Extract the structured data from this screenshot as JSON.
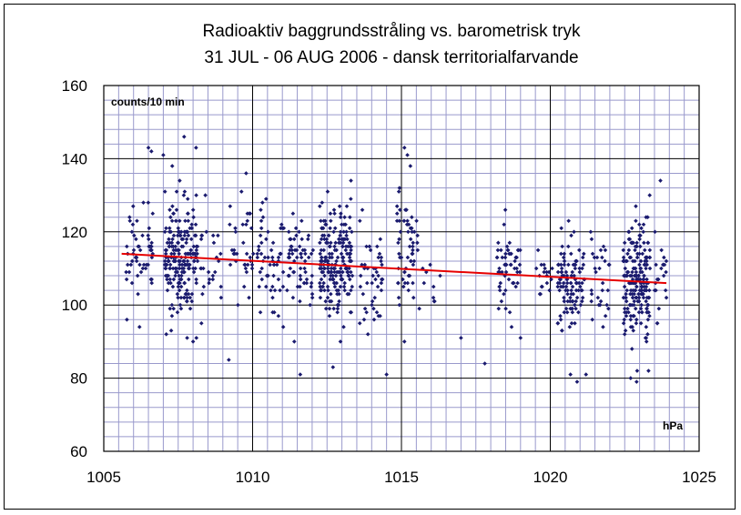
{
  "chart_data": {
    "type": "scatter",
    "title": "Radioaktiv baggrundsstråling vs. barometrisk tryk",
    "subtitle": "31 JUL - 06 AUG 2006 - dansk territorialfarvande",
    "ylabel": "counts/10 min",
    "xlabel": "hPa",
    "xlim": [
      1005,
      1025
    ],
    "ylim": [
      60,
      160
    ],
    "xticks": [
      1005,
      1010,
      1015,
      1020,
      1025
    ],
    "yticks": [
      60,
      80,
      100,
      120,
      140,
      160
    ],
    "x_minor_step": 0.5,
    "y_minor_step": 4,
    "grid": true,
    "legend": "none",
    "colors": {
      "points": "#1a1a6e",
      "trendline": "#e60000",
      "minor_grid": "#9999cc",
      "major_grid": "#000000",
      "plot_background": "#ffffff"
    },
    "trendline": {
      "x": [
        1005.6,
        1023.9
      ],
      "y": [
        114.0,
        106.0
      ]
    },
    "point_clusters": [
      {
        "x_center": 1006.2,
        "x_spread": 0.45,
        "y_mean": 114,
        "y_spread": 9,
        "count": 55
      },
      {
        "x_center": 1007.6,
        "x_spread": 0.55,
        "y_mean": 113,
        "y_spread": 11,
        "count": 210
      },
      {
        "x_center": 1008.6,
        "x_spread": 0.35,
        "y_mean": 112,
        "y_spread": 9,
        "count": 25
      },
      {
        "x_center": 1009.6,
        "x_spread": 0.45,
        "y_mean": 114,
        "y_spread": 10,
        "count": 35
      },
      {
        "x_center": 1010.6,
        "x_spread": 0.45,
        "y_mean": 112,
        "y_spread": 10,
        "count": 55
      },
      {
        "x_center": 1011.6,
        "x_spread": 0.45,
        "y_mean": 111,
        "y_spread": 9,
        "count": 60
      },
      {
        "x_center": 1012.8,
        "x_spread": 0.55,
        "y_mean": 112,
        "y_spread": 10,
        "count": 210
      },
      {
        "x_center": 1014.0,
        "x_spread": 0.4,
        "y_mean": 109,
        "y_spread": 10,
        "count": 45
      },
      {
        "x_center": 1015.2,
        "x_spread": 0.35,
        "y_mean": 113,
        "y_spread": 12,
        "count": 60
      },
      {
        "x_center": 1015.9,
        "x_spread": 0.25,
        "y_mean": 105,
        "y_spread": 5,
        "count": 8
      },
      {
        "x_center": 1018.6,
        "x_spread": 0.4,
        "y_mean": 110,
        "y_spread": 9,
        "count": 55
      },
      {
        "x_center": 1019.8,
        "x_spread": 0.3,
        "y_mean": 108,
        "y_spread": 7,
        "count": 18
      },
      {
        "x_center": 1020.7,
        "x_spread": 0.45,
        "y_mean": 106,
        "y_spread": 10,
        "count": 110
      },
      {
        "x_center": 1021.7,
        "x_spread": 0.35,
        "y_mean": 106,
        "y_spread": 8,
        "count": 30
      },
      {
        "x_center": 1022.9,
        "x_spread": 0.45,
        "y_mean": 107,
        "y_spread": 11,
        "count": 210
      },
      {
        "x_center": 1023.7,
        "x_spread": 0.2,
        "y_mean": 108,
        "y_spread": 10,
        "count": 20
      }
    ],
    "extra_points": [
      [
        1006.5,
        143
      ],
      [
        1006.6,
        142
      ],
      [
        1007.0,
        141
      ],
      [
        1007.3,
        138
      ],
      [
        1007.7,
        146
      ],
      [
        1008.1,
        143
      ],
      [
        1007.8,
        91
      ],
      [
        1008.0,
        90
      ],
      [
        1007.1,
        92
      ],
      [
        1006.2,
        94
      ],
      [
        1009.2,
        85
      ],
      [
        1011.4,
        90
      ],
      [
        1011.6,
        81
      ],
      [
        1012.7,
        83
      ],
      [
        1014.5,
        81
      ],
      [
        1013.6,
        95
      ],
      [
        1015.1,
        90
      ],
      [
        1015.1,
        143
      ],
      [
        1015.2,
        141
      ],
      [
        1015.3,
        138
      ],
      [
        1016.3,
        108
      ],
      [
        1017.0,
        91
      ],
      [
        1017.8,
        84
      ],
      [
        1019.0,
        91
      ],
      [
        1020.9,
        79
      ],
      [
        1021.2,
        81
      ],
      [
        1022.7,
        80
      ],
      [
        1022.9,
        79
      ],
      [
        1023.3,
        82
      ],
      [
        1023.7,
        134
      ],
      [
        1023.9,
        102
      ],
      [
        1015.6,
        99
      ],
      [
        1018.7,
        94
      ]
    ]
  }
}
